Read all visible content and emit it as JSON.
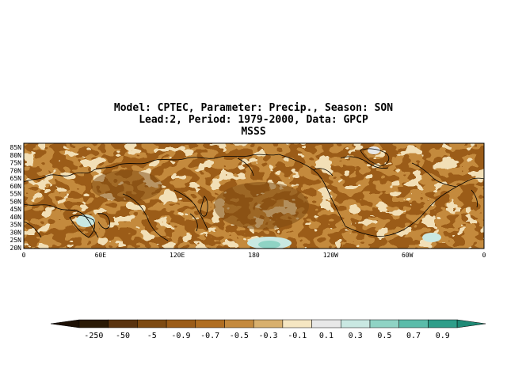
{
  "title": {
    "line1": "Model: CPTEC, Parameter: Precip., Season: SON",
    "line2": "Lead:2, Period: 1979-2000, Data: GPCP",
    "line3": "MSSS"
  },
  "map": {
    "lat_labels": [
      "85N",
      "80N",
      "75N",
      "70N",
      "65N",
      "60N",
      "55N",
      "50N",
      "45N",
      "40N",
      "35N",
      "30N",
      "25N",
      "20N"
    ],
    "lon_labels": [
      "0",
      "60E",
      "120E",
      "180",
      "120W",
      "60W",
      "0"
    ],
    "lat_range": [
      20,
      85
    ],
    "lon_range": [
      0,
      360
    ]
  },
  "legend": {
    "labels": [
      "-250",
      "-50",
      "-5",
      "-0.9",
      "-0.7",
      "-0.5",
      "-0.3",
      "-0.1",
      "0.1",
      "0.3",
      "0.5",
      "0.7",
      "0.9"
    ],
    "colors": [
      "#2b1a06",
      "#5a3410",
      "#7d4a12",
      "#9b5c18",
      "#b06e22",
      "#c48a3e",
      "#d8b06e",
      "#f5e6c2",
      "#e8e8e8",
      "#c9e8e2",
      "#8fd3c4",
      "#5bbcaa",
      "#2f9e8a"
    ],
    "end_left_color": "#1c1004",
    "end_right_color": "#1f8a76"
  }
}
